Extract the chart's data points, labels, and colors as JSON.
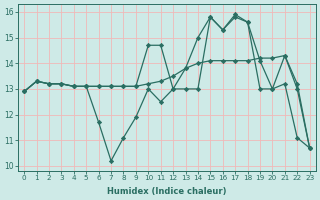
{
  "xlabel": "Humidex (Indice chaleur)",
  "xlim": [
    -0.5,
    23.5
  ],
  "ylim": [
    9.8,
    16.3
  ],
  "yticks": [
    10,
    11,
    12,
    13,
    14,
    15,
    16
  ],
  "xticks": [
    0,
    1,
    2,
    3,
    4,
    5,
    6,
    7,
    8,
    9,
    10,
    11,
    12,
    13,
    14,
    15,
    16,
    17,
    18,
    19,
    20,
    21,
    22,
    23
  ],
  "bg_color": "#ceeae7",
  "grid_color": "#f0b8b8",
  "line_color": "#2a6e62",
  "line1": [
    12.9,
    13.3,
    13.2,
    13.2,
    13.1,
    13.1,
    11.7,
    10.2,
    11.1,
    11.9,
    13.0,
    12.5,
    13.0,
    13.8,
    15.0,
    15.8,
    15.3,
    15.8,
    15.6,
    14.1,
    13.0,
    13.2,
    11.1,
    10.7
  ],
  "line2": [
    12.9,
    13.3,
    13.2,
    13.2,
    13.1,
    13.1,
    13.1,
    13.1,
    13.1,
    13.1,
    13.2,
    13.3,
    13.5,
    13.8,
    14.0,
    14.1,
    14.1,
    14.1,
    14.1,
    14.2,
    14.2,
    14.3,
    13.0,
    10.7
  ],
  "line3": [
    12.9,
    13.3,
    13.2,
    13.2,
    13.1,
    13.1,
    13.1,
    13.1,
    13.1,
    13.1,
    14.7,
    14.7,
    13.0,
    13.0,
    13.0,
    15.8,
    15.3,
    15.9,
    15.6,
    13.0,
    13.0,
    14.3,
    13.2,
    10.7
  ]
}
